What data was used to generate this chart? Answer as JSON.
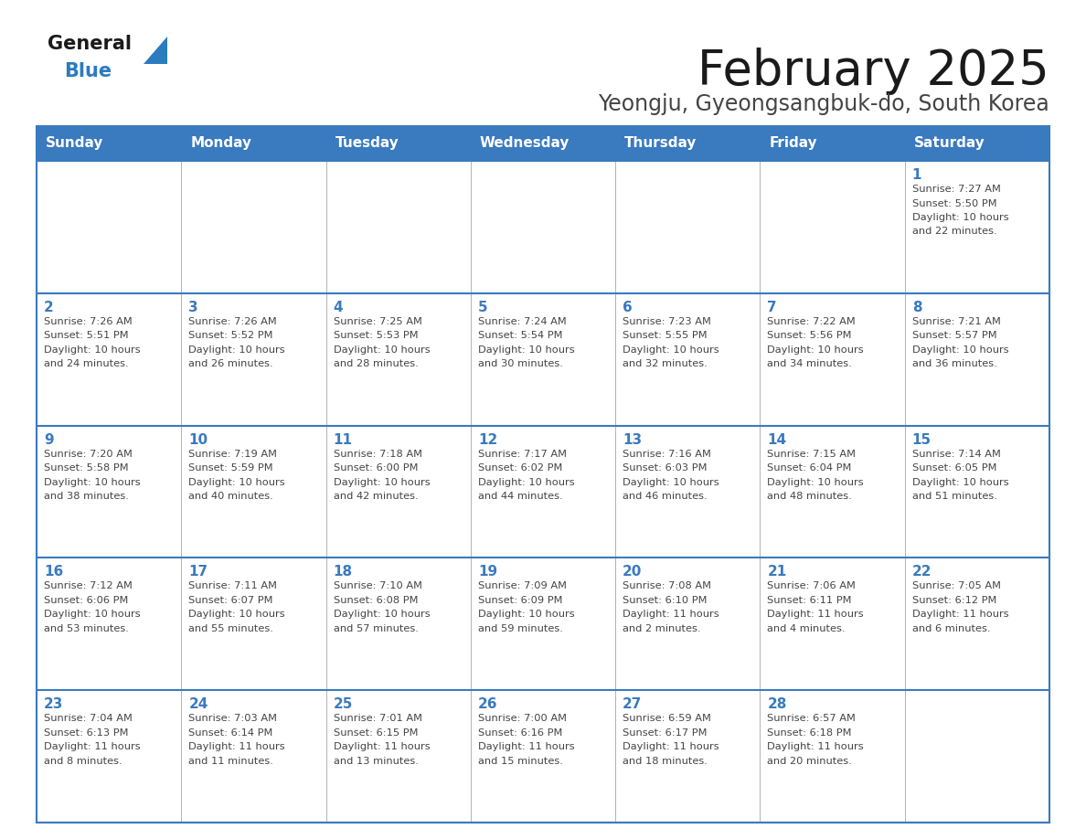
{
  "title": "February 2025",
  "subtitle": "Yeongju, Gyeongsangbuk-do, South Korea",
  "days_of_week": [
    "Sunday",
    "Monday",
    "Tuesday",
    "Wednesday",
    "Thursday",
    "Friday",
    "Saturday"
  ],
  "header_bg": "#3a7abf",
  "header_text": "#ffffff",
  "cell_bg": "#ffffff",
  "border_color": "#3a7abf",
  "cell_border_color": "#aaaaaa",
  "day_number_color": "#3a7abf",
  "text_color": "#444444",
  "title_color": "#1a1a1a",
  "subtitle_color": "#444444",
  "logo_general_color": "#1a1a1a",
  "logo_blue_color": "#2b7bbf",
  "weeks": [
    [
      {
        "day": null,
        "info": null
      },
      {
        "day": null,
        "info": null
      },
      {
        "day": null,
        "info": null
      },
      {
        "day": null,
        "info": null
      },
      {
        "day": null,
        "info": null
      },
      {
        "day": null,
        "info": null
      },
      {
        "day": 1,
        "info": "Sunrise: 7:27 AM\nSunset: 5:50 PM\nDaylight: 10 hours\nand 22 minutes."
      }
    ],
    [
      {
        "day": 2,
        "info": "Sunrise: 7:26 AM\nSunset: 5:51 PM\nDaylight: 10 hours\nand 24 minutes."
      },
      {
        "day": 3,
        "info": "Sunrise: 7:26 AM\nSunset: 5:52 PM\nDaylight: 10 hours\nand 26 minutes."
      },
      {
        "day": 4,
        "info": "Sunrise: 7:25 AM\nSunset: 5:53 PM\nDaylight: 10 hours\nand 28 minutes."
      },
      {
        "day": 5,
        "info": "Sunrise: 7:24 AM\nSunset: 5:54 PM\nDaylight: 10 hours\nand 30 minutes."
      },
      {
        "day": 6,
        "info": "Sunrise: 7:23 AM\nSunset: 5:55 PM\nDaylight: 10 hours\nand 32 minutes."
      },
      {
        "day": 7,
        "info": "Sunrise: 7:22 AM\nSunset: 5:56 PM\nDaylight: 10 hours\nand 34 minutes."
      },
      {
        "day": 8,
        "info": "Sunrise: 7:21 AM\nSunset: 5:57 PM\nDaylight: 10 hours\nand 36 minutes."
      }
    ],
    [
      {
        "day": 9,
        "info": "Sunrise: 7:20 AM\nSunset: 5:58 PM\nDaylight: 10 hours\nand 38 minutes."
      },
      {
        "day": 10,
        "info": "Sunrise: 7:19 AM\nSunset: 5:59 PM\nDaylight: 10 hours\nand 40 minutes."
      },
      {
        "day": 11,
        "info": "Sunrise: 7:18 AM\nSunset: 6:00 PM\nDaylight: 10 hours\nand 42 minutes."
      },
      {
        "day": 12,
        "info": "Sunrise: 7:17 AM\nSunset: 6:02 PM\nDaylight: 10 hours\nand 44 minutes."
      },
      {
        "day": 13,
        "info": "Sunrise: 7:16 AM\nSunset: 6:03 PM\nDaylight: 10 hours\nand 46 minutes."
      },
      {
        "day": 14,
        "info": "Sunrise: 7:15 AM\nSunset: 6:04 PM\nDaylight: 10 hours\nand 48 minutes."
      },
      {
        "day": 15,
        "info": "Sunrise: 7:14 AM\nSunset: 6:05 PM\nDaylight: 10 hours\nand 51 minutes."
      }
    ],
    [
      {
        "day": 16,
        "info": "Sunrise: 7:12 AM\nSunset: 6:06 PM\nDaylight: 10 hours\nand 53 minutes."
      },
      {
        "day": 17,
        "info": "Sunrise: 7:11 AM\nSunset: 6:07 PM\nDaylight: 10 hours\nand 55 minutes."
      },
      {
        "day": 18,
        "info": "Sunrise: 7:10 AM\nSunset: 6:08 PM\nDaylight: 10 hours\nand 57 minutes."
      },
      {
        "day": 19,
        "info": "Sunrise: 7:09 AM\nSunset: 6:09 PM\nDaylight: 10 hours\nand 59 minutes."
      },
      {
        "day": 20,
        "info": "Sunrise: 7:08 AM\nSunset: 6:10 PM\nDaylight: 11 hours\nand 2 minutes."
      },
      {
        "day": 21,
        "info": "Sunrise: 7:06 AM\nSunset: 6:11 PM\nDaylight: 11 hours\nand 4 minutes."
      },
      {
        "day": 22,
        "info": "Sunrise: 7:05 AM\nSunset: 6:12 PM\nDaylight: 11 hours\nand 6 minutes."
      }
    ],
    [
      {
        "day": 23,
        "info": "Sunrise: 7:04 AM\nSunset: 6:13 PM\nDaylight: 11 hours\nand 8 minutes."
      },
      {
        "day": 24,
        "info": "Sunrise: 7:03 AM\nSunset: 6:14 PM\nDaylight: 11 hours\nand 11 minutes."
      },
      {
        "day": 25,
        "info": "Sunrise: 7:01 AM\nSunset: 6:15 PM\nDaylight: 11 hours\nand 13 minutes."
      },
      {
        "day": 26,
        "info": "Sunrise: 7:00 AM\nSunset: 6:16 PM\nDaylight: 11 hours\nand 15 minutes."
      },
      {
        "day": 27,
        "info": "Sunrise: 6:59 AM\nSunset: 6:17 PM\nDaylight: 11 hours\nand 18 minutes."
      },
      {
        "day": 28,
        "info": "Sunrise: 6:57 AM\nSunset: 6:18 PM\nDaylight: 11 hours\nand 20 minutes."
      },
      {
        "day": null,
        "info": null
      }
    ]
  ],
  "fig_width": 11.88,
  "fig_height": 9.18,
  "dpi": 100
}
